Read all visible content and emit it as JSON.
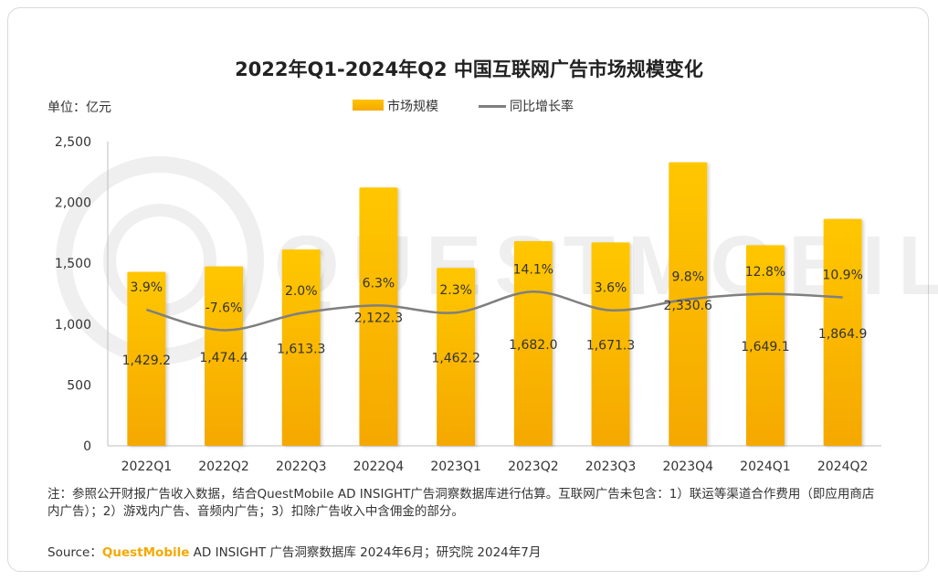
{
  "chart_data": {
    "type": "bar",
    "title": "2022年Q1-2024年Q2 中国互联网广告市场规模变化",
    "unit_label": "单位：亿元",
    "categories": [
      "2022Q1",
      "2022Q2",
      "2022Q3",
      "2022Q4",
      "2023Q1",
      "2023Q2",
      "2023Q3",
      "2023Q4",
      "2024Q1",
      "2024Q2"
    ],
    "series": [
      {
        "name": "市场规模",
        "type": "bar",
        "values": [
          1429.2,
          1474.4,
          1613.3,
          2122.3,
          1462.2,
          1682.0,
          1671.3,
          2330.6,
          1649.1,
          1864.9
        ],
        "labels": [
          "1,429.2",
          "1,474.4",
          "1,613.3",
          "2,122.3",
          "1,462.2",
          "1,682.0",
          "1,671.3",
          "2,330.6",
          "1,649.1",
          "1,864.9"
        ]
      },
      {
        "name": "同比增长率",
        "type": "line",
        "values": [
          3.9,
          -7.6,
          2.0,
          6.3,
          2.3,
          14.1,
          3.6,
          9.8,
          12.8,
          10.9
        ],
        "labels": [
          "3.9%",
          "-7.6%",
          "2.0%",
          "6.3%",
          "2.3%",
          "14.1%",
          "3.6%",
          "9.8%",
          "12.8%",
          "10.9%"
        ]
      }
    ],
    "ylim": [
      0,
      2500
    ],
    "yticks": [
      0,
      500,
      1000,
      1500,
      2000,
      2500
    ],
    "ytick_labels": [
      "0",
      "500",
      "1,000",
      "1,500",
      "2,000",
      "2,500"
    ],
    "grid": false,
    "legend_position": "top-center",
    "colors": {
      "bar_top": "#ffc300",
      "bar_bottom": "#f5a800",
      "line": "#7f7f7f"
    }
  },
  "note": "注：参照公开财报广告收入数据，结合QuestMobile AD INSIGHT广告洞察数据库进行估算。互联网广告未包含：1）联运等渠道合作费用（即应用商店内广告）；2）游戏内广告、音频内广告；3）扣除广告收入中含佣金的部分。",
  "source": {
    "prefix": "Source：",
    "brand": "QuestMobile",
    "rest": " AD INSIGHT 广告洞察数据库 2024年6月；研究院 2024年7月"
  },
  "watermark": "QUESTMOBILE"
}
